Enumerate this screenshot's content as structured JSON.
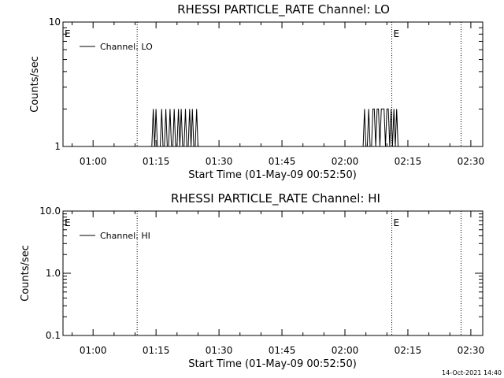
{
  "footer": {
    "timestamp": "14-Oct-2021 14:40"
  },
  "chart_data": [
    {
      "type": "line",
      "title": "RHESSI PARTICLE_RATE Channel: LO",
      "xlabel": "Start Time (01-May-09 00:52:50)",
      "ylabel": "Counts/sec",
      "y_scale": "log",
      "ylim": [
        1,
        10
      ],
      "y_ticks": [
        1,
        10
      ],
      "y_tick_labels": [
        "1",
        "10"
      ],
      "xlim": [
        "00:52:50",
        "02:32:50"
      ],
      "x_ticks": [
        "01:00",
        "01:15",
        "01:30",
        "01:45",
        "02:00",
        "02:15",
        "02:30"
      ],
      "legend": {
        "position": "top-left",
        "entries": [
          "Channel: LO"
        ]
      },
      "event_markers": [
        {
          "time": "00:52:50",
          "label": "E"
        },
        {
          "time": "01:10:30",
          "label": ""
        },
        {
          "time": "02:11:10",
          "label": "E"
        },
        {
          "time": "02:27:40",
          "label": ""
        }
      ],
      "series": [
        {
          "name": "Channel: LO",
          "x": [
            "00:52:50",
            "01:14:00",
            "01:14:20",
            "01:14:40",
            "01:15:00",
            "01:15:20",
            "01:15:40",
            "01:16:00",
            "01:16:20",
            "01:16:40",
            "01:17:00",
            "01:17:20",
            "01:17:40",
            "01:18:00",
            "01:18:20",
            "01:18:40",
            "01:19:00",
            "01:19:20",
            "01:19:40",
            "01:20:00",
            "01:20:20",
            "01:20:40",
            "01:21:00",
            "01:21:20",
            "01:21:40",
            "01:22:00",
            "01:22:20",
            "01:22:40",
            "01:23:00",
            "01:23:20",
            "01:23:40",
            "01:24:00",
            "01:24:20",
            "01:24:40",
            "01:25:00",
            "02:04:20",
            "02:04:40",
            "02:05:00",
            "02:05:20",
            "02:05:40",
            "02:06:00",
            "02:06:20",
            "02:06:40",
            "02:07:00",
            "02:07:20",
            "02:07:40",
            "02:08:00",
            "02:08:20",
            "02:08:40",
            "02:09:00",
            "02:09:20",
            "02:09:40",
            "02:10:00",
            "02:10:20",
            "02:10:40",
            "02:11:00",
            "02:11:20",
            "02:11:40",
            "02:12:00",
            "02:12:20",
            "02:12:40",
            "02:32:50"
          ],
          "y": [
            1,
            1,
            2,
            1,
            2,
            1,
            1,
            1,
            2,
            1,
            1,
            2,
            1,
            1,
            2,
            1,
            1,
            2,
            1,
            1,
            2,
            1,
            2,
            1,
            1,
            2,
            1,
            1,
            2,
            1,
            2,
            1,
            1,
            2,
            1,
            1,
            2,
            1,
            1,
            2,
            1,
            1,
            2,
            2,
            1,
            2,
            2,
            1,
            2,
            2,
            2,
            1,
            2,
            2,
            1,
            2,
            1,
            2,
            1,
            2,
            1,
            1
          ]
        }
      ]
    },
    {
      "type": "line",
      "title": "RHESSI PARTICLE_RATE Channel: HI",
      "xlabel": "Start Time (01-May-09 00:52:50)",
      "ylabel": "Counts/sec",
      "y_scale": "log",
      "ylim": [
        0.1,
        10
      ],
      "y_ticks": [
        0.1,
        1,
        10
      ],
      "y_tick_labels": [
        "0.1",
        "1.0",
        "10.0"
      ],
      "xlim": [
        "00:52:50",
        "02:32:50"
      ],
      "x_ticks": [
        "01:00",
        "01:15",
        "01:30",
        "01:45",
        "02:00",
        "02:15",
        "02:30"
      ],
      "legend": {
        "position": "top-left",
        "entries": [
          "Channel: HI"
        ]
      },
      "event_markers": [
        {
          "time": "00:52:50",
          "label": "E"
        },
        {
          "time": "01:10:30",
          "label": ""
        },
        {
          "time": "02:11:10",
          "label": "E"
        },
        {
          "time": "02:27:40",
          "label": ""
        }
      ],
      "series": [
        {
          "name": "Channel: HI",
          "x": [],
          "y": []
        }
      ]
    }
  ]
}
